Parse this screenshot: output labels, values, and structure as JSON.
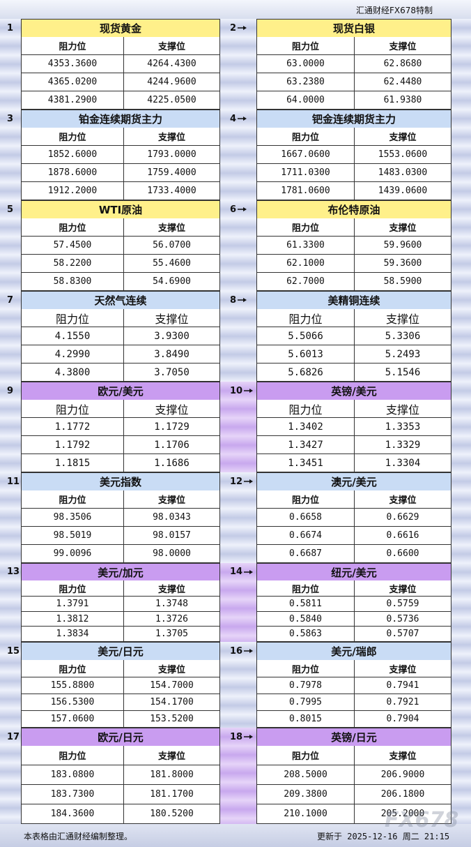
{
  "header": {
    "brand": "汇通财经FX678特制"
  },
  "panels": [
    {
      "number": "1",
      "title": "现货黄金",
      "color": "#fff08a",
      "headers": [
        "阻力位",
        "支撑位"
      ],
      "rows": [
        [
          "4353.3600",
          "4264.4300"
        ],
        [
          "4365.0200",
          "4244.9600"
        ],
        [
          "4381.2900",
          "4225.0500"
        ]
      ]
    },
    {
      "number": "2",
      "title": "现货白银",
      "color": "#fff08a",
      "headers": [
        "阻力位",
        "支撑位"
      ],
      "rows": [
        [
          "63.0000",
          "62.8680"
        ],
        [
          "63.2380",
          "62.4480"
        ],
        [
          "64.0000",
          "61.9380"
        ]
      ]
    },
    {
      "number": "3",
      "title": "铂金连续期货主力",
      "color": "#c9dcf5",
      "headers": [
        "阻力位",
        "支撑位"
      ],
      "rows": [
        [
          "1852.6000",
          "1793.0000"
        ],
        [
          "1878.6000",
          "1759.4000"
        ],
        [
          "1912.2000",
          "1733.4000"
        ]
      ]
    },
    {
      "number": "4",
      "title": "钯金连续期货主力",
      "color": "#c9dcf5",
      "headers": [
        "阻力位",
        "支撑位"
      ],
      "rows": [
        [
          "1667.0600",
          "1553.0600"
        ],
        [
          "1711.0300",
          "1483.0300"
        ],
        [
          "1781.0600",
          "1439.0600"
        ]
      ]
    },
    {
      "number": "5",
      "title": "WTI原油",
      "color": "#fff08a",
      "headers": [
        "阻力位",
        "支撑位"
      ],
      "rows": [
        [
          "57.4500",
          "56.0700"
        ],
        [
          "58.2200",
          "55.4600"
        ],
        [
          "58.8300",
          "54.6900"
        ]
      ]
    },
    {
      "number": "6",
      "title": "布伦特原油",
      "color": "#fff08a",
      "headers": [
        "阻力位",
        "支撑位"
      ],
      "rows": [
        [
          "61.3300",
          "59.9600"
        ],
        [
          "62.1000",
          "59.3600"
        ],
        [
          "62.7000",
          "58.5900"
        ]
      ]
    },
    {
      "number": "7",
      "title": "天然气连续",
      "color": "#c9dcf5",
      "headers": [
        "阻力位",
        "支撑位"
      ],
      "rows": [
        [
          "4.1550",
          "3.9300"
        ],
        [
          "4.2990",
          "3.8490"
        ],
        [
          "4.3800",
          "3.7050"
        ]
      ]
    },
    {
      "number": "8",
      "title": "美精铜连续",
      "color": "#c9dcf5",
      "headers": [
        "阻力位",
        "支撑位"
      ],
      "rows": [
        [
          "5.5066",
          "5.3306"
        ],
        [
          "5.6013",
          "5.2493"
        ],
        [
          "5.6826",
          "5.1546"
        ]
      ]
    },
    {
      "number": "9",
      "title": "欧元/美元",
      "color": "#c99cf0",
      "headers": [
        "阻力位",
        "支撑位"
      ],
      "rows": [
        [
          "1.1772",
          "1.1729"
        ],
        [
          "1.1792",
          "1.1706"
        ],
        [
          "1.1815",
          "1.1686"
        ]
      ]
    },
    {
      "number": "10",
      "title": "英镑/美元",
      "color": "#c99cf0",
      "headers": [
        "阻力位",
        "支撑位"
      ],
      "rows": [
        [
          "1.3402",
          "1.3353"
        ],
        [
          "1.3427",
          "1.3329"
        ],
        [
          "1.3451",
          "1.3304"
        ]
      ]
    },
    {
      "number": "11",
      "title": "美元指数",
      "color": "#c9dcf5",
      "headers": [
        "阻力位",
        "支撑位"
      ],
      "rows": [
        [
          "98.3506",
          "98.0343"
        ],
        [
          "98.5019",
          "98.0157"
        ],
        [
          "99.0096",
          "98.0000"
        ]
      ]
    },
    {
      "number": "12",
      "title": "澳元/美元",
      "color": "#c9dcf5",
      "headers": [
        "阻力位",
        "支撑位"
      ],
      "rows": [
        [
          "0.6658",
          "0.6629"
        ],
        [
          "0.6674",
          "0.6616"
        ],
        [
          "0.6687",
          "0.6600"
        ]
      ]
    },
    {
      "number": "13",
      "title": "美元/加元",
      "color": "#c99cf0",
      "headers": [
        "阻力位",
        "支撑位"
      ],
      "rows": [
        [
          "1.3791",
          "1.3748"
        ],
        [
          "1.3812",
          "1.3726"
        ],
        [
          "1.3834",
          "1.3705"
        ]
      ]
    },
    {
      "number": "14",
      "title": "纽元/美元",
      "color": "#c99cf0",
      "headers": [
        "阻力位",
        "支撑位"
      ],
      "rows": [
        [
          "0.5811",
          "0.5759"
        ],
        [
          "0.5840",
          "0.5736"
        ],
        [
          "0.5863",
          "0.5707"
        ]
      ]
    },
    {
      "number": "15",
      "title": "美元/日元",
      "color": "#c9dcf5",
      "headers": [
        "阻力位",
        "支撑位"
      ],
      "rows": [
        [
          "155.8800",
          "154.7000"
        ],
        [
          "156.5300",
          "154.1700"
        ],
        [
          "157.0600",
          "153.5200"
        ]
      ]
    },
    {
      "number": "16",
      "title": "美元/瑞郎",
      "color": "#c9dcf5",
      "headers": [
        "阻力位",
        "支撑位"
      ],
      "rows": [
        [
          "0.7978",
          "0.7941"
        ],
        [
          "0.7995",
          "0.7921"
        ],
        [
          "0.8015",
          "0.7904"
        ]
      ]
    },
    {
      "number": "17",
      "title": "欧元/日元",
      "color": "#c99cf0",
      "headers": [
        "阻力位",
        "支撑位"
      ],
      "rows": [
        [
          "183.0800",
          "181.8000"
        ],
        [
          "183.7300",
          "181.1700"
        ],
        [
          "184.3600",
          "180.5200"
        ]
      ]
    },
    {
      "number": "18",
      "title": "英镑/日元",
      "color": "#c99cf0",
      "headers": [
        "阻力位",
        "支撑位"
      ],
      "rows": [
        [
          "208.5000",
          "206.9000"
        ],
        [
          "209.3800",
          "206.1800"
        ],
        [
          "210.1000",
          "205.2000"
        ]
      ]
    }
  ],
  "footer": {
    "note": "本表格由汇通财经编制整理。",
    "updated": "更新于 2025-12-16 周二 21:15"
  },
  "watermark": "FX678"
}
